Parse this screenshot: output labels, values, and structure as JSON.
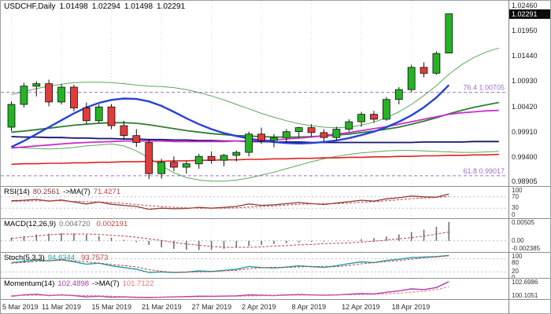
{
  "header": {
    "symbol_period": "USDCHF,Daily",
    "open": "1.01498",
    "high": "1.02294",
    "low": "1.01498",
    "close": "1.02291"
  },
  "chart_data": {
    "type": "candlestick",
    "title": "USDCHF,Daily",
    "style": {
      "up": "#25b325",
      "down": "#e23b3b",
      "wick": "#111111",
      "grid": "#d8dbe0",
      "level": "#bcbcd0",
      "fib": "#9a6fce"
    },
    "x_ticks": [
      {
        "i": 0,
        "label": "5 Mar 2019"
      },
      {
        "i": 4,
        "label": "11 Mar 2019"
      },
      {
        "i": 8,
        "label": "15 Mar 2019"
      },
      {
        "i": 12,
        "label": "21 Mar 2019"
      },
      {
        "i": 16,
        "label": "27 Mar 2019"
      },
      {
        "i": 20,
        "label": "2 Apr 2019"
      },
      {
        "i": 24,
        "label": "8 Apr 2019"
      },
      {
        "i": 28,
        "label": "12 Apr 2019"
      },
      {
        "i": 32,
        "label": "18 Apr 2019"
      }
    ],
    "price_axis": {
      "min": 0.98905,
      "max": 1.0246,
      "current": "1.02291",
      "current_value": 1.02291,
      "ticks": [
        {
          "t": "1.02460",
          "v": 1.0246
        },
        {
          "t": "1.01950",
          "v": 1.0195
        },
        {
          "t": "1.01440",
          "v": 1.0144
        },
        {
          "t": "1.00930",
          "v": 1.0093
        },
        {
          "t": "1.00420",
          "v": 1.0042
        },
        {
          "t": "0.99910",
          "v": 0.9991
        },
        {
          "t": "0.99400",
          "v": 0.994
        },
        {
          "t": "0.98905",
          "v": 0.98905
        }
      ]
    },
    "fib": [
      {
        "label": "76.4  1.00705",
        "price": 1.00705
      },
      {
        "label": "61.8  0.99017",
        "price": 0.99017
      }
    ],
    "candles": [
      [
        1.0,
        1.0052,
        0.9992,
        1.0046
      ],
      [
        1.0046,
        1.009,
        1.004,
        1.0083
      ],
      [
        1.0083,
        1.0093,
        1.0062,
        1.0088
      ],
      [
        1.0088,
        1.0096,
        1.0042,
        1.0051
      ],
      [
        1.0051,
        1.0087,
        1.0046,
        1.0081
      ],
      [
        1.0081,
        1.0086,
        1.0032,
        1.0039
      ],
      [
        1.0039,
        1.005,
        1.0006,
        1.0013
      ],
      [
        1.0013,
        1.0046,
        1.0008,
        1.0041
      ],
      [
        1.0041,
        1.0047,
        0.9996,
        1.0003
      ],
      [
        1.0003,
        1.0013,
        0.9976,
        0.9983
      ],
      [
        0.9983,
        0.9996,
        0.996,
        0.9969
      ],
      [
        0.9969,
        0.9976,
        0.9895,
        0.9906
      ],
      [
        0.9906,
        0.9936,
        0.9896,
        0.9929
      ],
      [
        0.9929,
        0.9941,
        0.9911,
        0.9919
      ],
      [
        0.9919,
        0.9931,
        0.9906,
        0.9926
      ],
      [
        0.9926,
        0.9946,
        0.9916,
        0.9941
      ],
      [
        0.9941,
        0.9951,
        0.9926,
        0.9933
      ],
      [
        0.9933,
        0.9946,
        0.9921,
        0.9943
      ],
      [
        0.9943,
        0.9953,
        0.9931,
        0.9949
      ],
      [
        0.9949,
        0.9991,
        0.9941,
        0.9986
      ],
      [
        0.9986,
        0.9999,
        0.9966,
        0.9973
      ],
      [
        0.9973,
        0.9986,
        0.9959,
        0.9979
      ],
      [
        0.9979,
        0.9996,
        0.9969,
        0.9991
      ],
      [
        0.9991,
        1.0001,
        0.9979,
        0.9999
      ],
      [
        0.9999,
        1.0006,
        0.9981,
        0.9989
      ],
      [
        0.9989,
        0.9996,
        0.9971,
        0.9979
      ],
      [
        0.9979,
        1.0001,
        0.9973,
        0.9996
      ],
      [
        0.9996,
        1.0016,
        0.9991,
        1.0011
      ],
      [
        1.0011,
        1.0031,
        1.0001,
        1.0026
      ],
      [
        1.0026,
        1.0033,
        1.0009,
        1.0016
      ],
      [
        1.0016,
        1.0061,
        1.0013,
        1.0056
      ],
      [
        1.0056,
        1.0081,
        1.0046,
        1.0076
      ],
      [
        1.0076,
        1.0126,
        1.0071,
        1.0121
      ],
      [
        1.0121,
        1.0131,
        1.0101,
        1.0109
      ],
      [
        1.0109,
        1.0153,
        1.0106,
        1.0149
      ],
      [
        1.01498,
        1.02294,
        1.01498,
        1.02291
      ]
    ],
    "overlays": [
      {
        "name": "bollinger-upper",
        "color": "#5aa85a",
        "width": 1,
        "values": [
          1.0066,
          1.0072,
          1.0078,
          1.0083,
          1.0087,
          1.009,
          1.0091,
          1.0091,
          1.009,
          1.0088,
          1.0085,
          1.0083,
          1.0082,
          1.008,
          1.0076,
          1.007,
          1.0063,
          1.0055,
          1.0046,
          1.0037,
          1.0028,
          1.002,
          1.0013,
          1.0007,
          1.0003,
          1.0,
          0.9999,
          1.0,
          1.0004,
          1.001,
          1.0019,
          1.0031,
          1.0046,
          1.0064,
          1.0084,
          1.0107,
          1.0126,
          1.0141,
          1.0152,
          1.016
        ]
      },
      {
        "name": "bollinger-lower",
        "color": "#5aa85a",
        "width": 1,
        "values": [
          0.996,
          0.9958,
          0.9957,
          0.9956,
          0.9957,
          0.9959,
          0.9962,
          0.9964,
          0.9966,
          0.9962,
          0.9952,
          0.9938,
          0.9922,
          0.9908,
          0.9898,
          0.9893,
          0.9891,
          0.9891,
          0.9893,
          0.9897,
          0.9903,
          0.9909,
          0.9916,
          0.9923,
          0.993,
          0.9936,
          0.9941,
          0.9945,
          0.9948,
          0.995,
          0.9952,
          0.9953,
          0.9953,
          0.9952,
          0.9951,
          0.995,
          0.9949,
          0.9949,
          0.995,
          0.9951
        ]
      },
      {
        "name": "ma-green",
        "color": "#2e7d32",
        "width": 1.8,
        "values": [
          0.999,
          0.9992,
          0.9995,
          0.9998,
          1.0001,
          1.0004,
          1.0006,
          1.0008,
          1.0009,
          1.0009,
          1.0008,
          1.0005,
          1.0001,
          0.9997,
          0.9993,
          0.999,
          0.9987,
          0.9985,
          0.9983,
          0.9982,
          0.9981,
          0.998,
          0.998,
          0.998,
          0.9981,
          0.9982,
          0.9984,
          0.9986,
          0.9989,
          0.9992,
          0.9996,
          1.0,
          1.0006,
          1.0012,
          1.0019,
          1.0027,
          1.0034,
          1.004,
          1.0045,
          1.005
        ]
      },
      {
        "name": "ma-navy",
        "color": "#151569",
        "width": 1.8,
        "values": [
          0.9981,
          0.998,
          0.998,
          0.9979,
          0.9979,
          0.9978,
          0.9978,
          0.9977,
          0.9977,
          0.9976,
          0.9976,
          0.9975,
          0.9975,
          0.9974,
          0.9974,
          0.9973,
          0.9973,
          0.9972,
          0.9972,
          0.9971,
          0.9971,
          0.997,
          0.997,
          0.997,
          0.9969,
          0.9969,
          0.9969,
          0.9969,
          0.9969,
          0.9969,
          0.9969,
          0.9969,
          0.9969,
          0.997,
          0.997,
          0.997,
          0.997,
          0.9971,
          0.9971,
          0.9971
        ]
      },
      {
        "name": "ma-red",
        "color": "#e02020",
        "width": 1.6,
        "values": [
          0.9925,
          0.9926,
          0.9926,
          0.9927,
          0.9927,
          0.9928,
          0.9928,
          0.9929,
          0.9929,
          0.993,
          0.993,
          0.9931,
          0.9931,
          0.9932,
          0.9932,
          0.9933,
          0.9933,
          0.9934,
          0.9934,
          0.9935,
          0.9935,
          0.9936,
          0.9936,
          0.9937,
          0.9937,
          0.9938,
          0.9938,
          0.9939,
          0.9939,
          0.994,
          0.994,
          0.9941,
          0.9941,
          0.9942,
          0.9942,
          0.9943,
          0.9943,
          0.9944,
          0.9944,
          0.9945
        ]
      },
      {
        "name": "ma-magenta",
        "color": "#cc2ecc",
        "width": 1.8,
        "values": [
          0.9958,
          0.996,
          0.9962,
          0.9964,
          0.9966,
          0.9968,
          0.9969,
          0.997,
          0.9971,
          0.9972,
          0.9972,
          0.9972,
          0.9972,
          0.9971,
          0.9971,
          0.9971,
          0.9971,
          0.9971,
          0.9972,
          0.9972,
          0.9973,
          0.9974,
          0.9976,
          0.9978,
          0.998,
          0.9983,
          0.9986,
          0.9989,
          0.9993,
          0.9997,
          1.0001,
          1.0006,
          1.0011,
          1.0016,
          1.0021,
          1.0026,
          1.0029,
          1.0031,
          1.0033,
          1.0034
        ]
      },
      {
        "name": "ma-blue",
        "color": "#2742d6",
        "width": 2.4,
        "values": [
          0.996,
          0.9972,
          0.9986,
          1.0,
          1.0014,
          1.0028,
          1.004,
          1.0049,
          1.0055,
          1.0058,
          1.0057,
          1.0052,
          1.0043,
          1.0031,
          1.0018,
          1.0006,
          0.9996,
          0.9988,
          0.9982,
          0.9977,
          0.9973,
          0.997,
          0.9968,
          0.9967,
          0.9968,
          0.997,
          0.9973,
          0.9978,
          0.9984,
          0.9991,
          1.0,
          1.0011,
          1.0024,
          1.004,
          1.006,
          1.0085
        ]
      }
    ],
    "panels": {
      "rsi": {
        "title": "RSI(14)",
        "value1": "80.2561",
        "sep": "->MA(7)",
        "value2": "71.4271",
        "min": 0,
        "max": 100,
        "levels": [
          70,
          30
        ],
        "ticks": [
          {
            "t": "100",
            "v": 100
          },
          {
            "t": "70",
            "v": 70
          },
          {
            "t": "30",
            "v": 30
          },
          {
            "t": "0",
            "v": 0
          }
        ],
        "series": [
          {
            "name": "rsi-line",
            "color": "#8b3a3a",
            "width": 1.3,
            "values": [
              56,
              58,
              61,
              55,
              59,
              52,
              45,
              52,
              44,
              40,
              36,
              26,
              30,
              28,
              29,
              33,
              30,
              33,
              36,
              45,
              40,
              42,
              46,
              50,
              46,
              43,
              48,
              53,
              58,
              55,
              63,
              67,
              73,
              70,
              69,
              80.26
            ]
          },
          {
            "name": "rsi-ma-line",
            "color": "#cc4444",
            "width": 1,
            "dash": "3,2",
            "values": [
              54,
              55,
              56,
              56,
              56,
              54,
              53,
              52,
              50,
              47,
              43,
              39,
              36,
              33,
              31,
              30,
              30,
              30,
              31,
              34,
              36,
              38,
              41,
              44,
              45,
              46,
              46,
              48,
              51,
              53,
              56,
              60,
              64,
              66,
              68,
              71.43
            ]
          }
        ]
      },
      "macd": {
        "title": "MACD(12,26,9)",
        "value1": "0.004720",
        "sep": "",
        "value2": "0.002191",
        "min": -0.002385,
        "max": 0.00505,
        "levels": [
          0
        ],
        "hist_color": "#707070",
        "ticks": [
          {
            "t": "0.00505",
            "v": 0.00505
          },
          {
            "t": "0.00",
            "v": 0
          },
          {
            "t": "-0.002385",
            "v": -0.002385
          }
        ],
        "hist": [
          0.0008,
          0.0012,
          0.0016,
          0.0018,
          0.0019,
          0.0018,
          0.0015,
          0.0012,
          0.0008,
          0.0003,
          -0.0003,
          -0.001,
          -0.0016,
          -0.002,
          -0.0022,
          -0.0023,
          -0.0022,
          -0.002,
          -0.0017,
          -0.0013,
          -0.001,
          -0.0008,
          -0.0006,
          -0.0004,
          -0.0003,
          -0.0002,
          -0.0001,
          0.0001,
          0.0004,
          0.0007,
          0.0011,
          0.0016,
          0.0022,
          0.0028,
          0.0035,
          0.00472
        ],
        "series": [
          {
            "name": "macd-signal-line",
            "color": "#c04040",
            "width": 1,
            "dash": "3,2",
            "values": [
              0.0006,
              0.0009,
              0.0012,
              0.0015,
              0.0017,
              0.0017,
              0.0017,
              0.0016,
              0.0014,
              0.0012,
              0.0009,
              0.0005,
              0.0001,
              -0.0004,
              -0.0008,
              -0.0011,
              -0.0014,
              -0.0016,
              -0.0016,
              -0.0016,
              -0.0015,
              -0.0013,
              -0.0012,
              -0.001,
              -0.0009,
              -0.0007,
              -0.0006,
              -0.0005,
              -0.0003,
              -0.0001,
              0.0002,
              0.0005,
              0.0008,
              0.0012,
              0.0017,
              0.002191
            ]
          }
        ]
      },
      "stoch": {
        "title": "Stoch(5,3,3)",
        "value1": "94.6344",
        "sep": "",
        "value2": "93.7573",
        "min": 0,
        "max": 100,
        "levels": [
          80,
          20
        ],
        "ticks": [
          {
            "t": "100",
            "v": 100
          },
          {
            "t": "80",
            "v": 80
          },
          {
            "t": "20",
            "v": 20
          },
          {
            "t": "0",
            "v": 0
          }
        ],
        "series": [
          {
            "name": "stoch-k-line",
            "color": "#1f9e9e",
            "width": 1.4,
            "values": [
              62,
              68,
              74,
              70,
              76,
              66,
              55,
              60,
              48,
              40,
              32,
              18,
              20,
              17,
              19,
              25,
              22,
              27,
              32,
              45,
              40,
              38,
              42,
              48,
              44,
              41,
              48,
              58,
              66,
              62,
              72,
              78,
              85,
              88,
              90,
              94.63
            ]
          },
          {
            "name": "stoch-d-line",
            "color": "#c04040",
            "width": 1,
            "dash": "3,2",
            "values": [
              60,
              63,
              68,
              71,
              73,
              71,
              66,
              60,
              54,
              49,
              43,
              30,
              23,
              18,
              19,
              20,
              21,
              25,
              27,
              35,
              39,
              41,
              40,
              43,
              45,
              44,
              44,
              49,
              57,
              62,
              67,
              71,
              78,
              84,
              88,
              93.76
            ]
          }
        ]
      },
      "momentum": {
        "title": "Momentum(14)",
        "value1": "102.4898",
        "sep": "->MA(7)",
        "value2": "101.7122",
        "min": 100.1051,
        "max": 102.6986,
        "levels": [],
        "ticks": [
          {
            "t": "102.6986",
            "v": 102.6986
          },
          {
            "t": "100.1051",
            "v": 100.1051
          }
        ],
        "series": [
          {
            "name": "momentum-line",
            "color": "#b03ab0",
            "width": 1.4,
            "values": [
              100.3,
              100.5,
              100.6,
              100.4,
              100.5,
              100.4,
              100.2,
              100.3,
              100.15,
              100.2,
              100.12,
              100.11,
              100.15,
              100.2,
              100.25,
              100.3,
              100.28,
              100.32,
              100.35,
              100.5,
              100.45,
              100.4,
              100.5,
              100.55,
              100.5,
              100.45,
              100.5,
              100.6,
              100.7,
              100.65,
              100.9,
              101.1,
              101.4,
              101.3,
              101.6,
              102.49
            ]
          },
          {
            "name": "momentum-ma-line",
            "color": "#e57373",
            "width": 1,
            "dash": "3,2",
            "values": [
              100.4,
              100.42,
              100.45,
              100.45,
              100.45,
              100.42,
              100.4,
              100.37,
              100.3,
              100.25,
              100.2,
              100.17,
              100.15,
              100.16,
              100.18,
              100.2,
              100.23,
              100.26,
              100.29,
              100.33,
              100.37,
              100.4,
              100.43,
              100.46,
              100.48,
              100.49,
              100.5,
              100.52,
              100.55,
              100.58,
              100.65,
              100.75,
              100.9,
              101.05,
              101.3,
              101.71
            ]
          }
        ]
      }
    }
  }
}
